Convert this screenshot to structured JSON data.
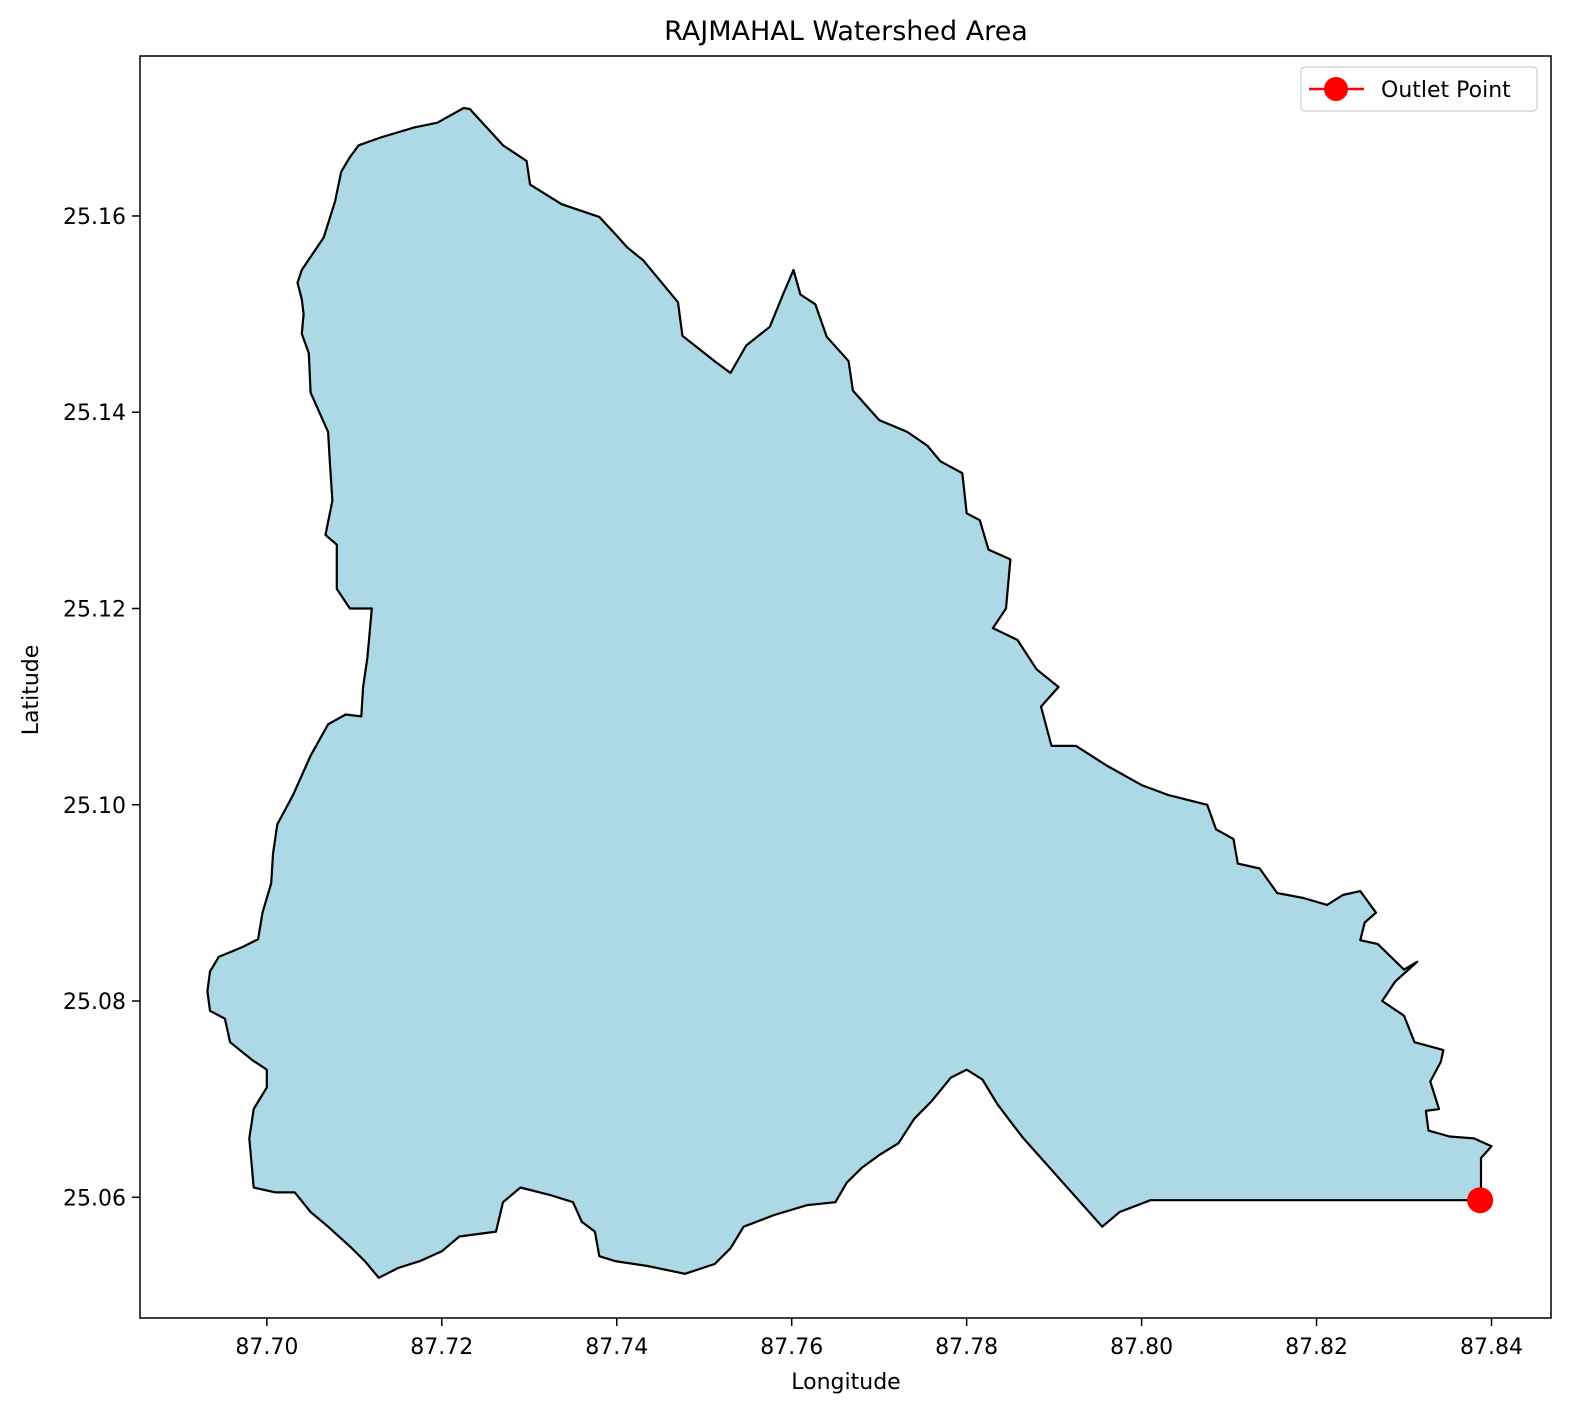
{
  "chart_data": {
    "type": "map",
    "title": "RAJMAHAL Watershed Area",
    "xlabel": "Longitude",
    "ylabel": "Latitude",
    "xlim": [
      87.6855,
      87.8468
    ],
    "ylim": [
      25.0477,
      25.1763
    ],
    "x_ticks": [
      87.7,
      87.72,
      87.74,
      87.76,
      87.78,
      87.8,
      87.82,
      87.84
    ],
    "x_tick_labels": [
      "87.70",
      "87.72",
      "87.74",
      "87.76",
      "87.78",
      "87.80",
      "87.82",
      "87.84"
    ],
    "y_ticks": [
      25.06,
      25.08,
      25.1,
      25.12,
      25.14,
      25.16
    ],
    "y_tick_labels": [
      "25.06",
      "25.08",
      "25.10",
      "25.12",
      "25.14",
      "25.16"
    ],
    "grid": false,
    "legend": {
      "position": "top-right",
      "entries": [
        "Outlet Point"
      ]
    },
    "colors": {
      "watershed_fill": "#add8e6",
      "watershed_edge": "#000000",
      "outlet": "#ff0000"
    },
    "outlet_point": {
      "name": "Outlet Point",
      "lon": 87.8387,
      "lat": 25.0597
    },
    "watershed_boundary": [
      [
        87.7232,
        25.1709
      ],
      [
        87.727,
        25.1672
      ],
      [
        87.7297,
        25.1656
      ],
      [
        87.7301,
        25.1632
      ],
      [
        87.7337,
        25.1612
      ],
      [
        87.738,
        25.1599
      ],
      [
        87.74,
        25.158
      ],
      [
        87.7412,
        25.1568
      ],
      [
        87.743,
        25.1555
      ],
      [
        87.747,
        25.1512
      ],
      [
        87.7475,
        25.1478
      ],
      [
        87.7512,
        25.1452
      ],
      [
        87.753,
        25.144
      ],
      [
        87.7548,
        25.1468
      ],
      [
        87.7575,
        25.1487
      ],
      [
        87.759,
        25.152
      ],
      [
        87.7602,
        25.1545
      ],
      [
        87.761,
        25.152
      ],
      [
        87.7627,
        25.151
      ],
      [
        87.764,
        25.1477
      ],
      [
        87.7665,
        25.1452
      ],
      [
        87.767,
        25.1422
      ],
      [
        87.77,
        25.1392
      ],
      [
        87.7732,
        25.138
      ],
      [
        87.7755,
        25.1366
      ],
      [
        87.777,
        25.135
      ],
      [
        87.7795,
        25.1338
      ],
      [
        87.78,
        25.1297
      ],
      [
        87.7815,
        25.129
      ],
      [
        87.7825,
        25.126
      ],
      [
        87.785,
        25.125
      ],
      [
        87.7845,
        25.12
      ],
      [
        87.783,
        25.118
      ],
      [
        87.7858,
        25.1168
      ],
      [
        87.788,
        25.1138
      ],
      [
        87.7905,
        25.112
      ],
      [
        87.7885,
        25.11
      ],
      [
        87.7897,
        25.106
      ],
      [
        87.7925,
        25.106
      ],
      [
        87.796,
        25.104
      ],
      [
        87.8,
        25.102
      ],
      [
        87.803,
        25.101
      ],
      [
        87.8075,
        25.1
      ],
      [
        87.8085,
        25.0975
      ],
      [
        87.8105,
        25.0965
      ],
      [
        87.811,
        25.094
      ],
      [
        87.8135,
        25.0935
      ],
      [
        87.8155,
        25.091
      ],
      [
        87.8185,
        25.0905
      ],
      [
        87.8212,
        25.0898
      ],
      [
        87.823,
        25.0908
      ],
      [
        87.825,
        25.0912
      ],
      [
        87.8268,
        25.089
      ],
      [
        87.8255,
        25.088
      ],
      [
        87.825,
        25.0862
      ],
      [
        87.827,
        25.0858
      ],
      [
        87.83,
        25.0832
      ],
      [
        87.8315,
        25.084
      ],
      [
        87.829,
        25.082
      ],
      [
        87.8275,
        25.08
      ],
      [
        87.83,
        25.0785
      ],
      [
        87.8312,
        25.0758
      ],
      [
        87.8345,
        25.075
      ],
      [
        87.8342,
        25.0738
      ],
      [
        87.833,
        25.0718
      ],
      [
        87.834,
        25.069
      ],
      [
        87.8325,
        25.0688
      ],
      [
        87.8328,
        25.0668
      ],
      [
        87.8352,
        25.0662
      ],
      [
        87.838,
        25.066
      ],
      [
        87.84,
        25.0652
      ],
      [
        87.8388,
        25.064
      ],
      [
        87.8388,
        25.0597
      ],
      [
        87.801,
        25.0597
      ],
      [
        87.7975,
        25.0585
      ],
      [
        87.7955,
        25.057
      ],
      [
        87.7925,
        25.06
      ],
      [
        87.7885,
        25.064
      ],
      [
        87.7865,
        25.066
      ],
      [
        87.7852,
        25.0675
      ],
      [
        87.7835,
        25.0695
      ],
      [
        87.7818,
        25.072
      ],
      [
        87.78,
        25.073
      ],
      [
        87.7782,
        25.0722
      ],
      [
        87.776,
        25.0698
      ],
      [
        87.774,
        25.068
      ],
      [
        87.7722,
        25.0655
      ],
      [
        87.77,
        25.0643
      ],
      [
        87.768,
        25.063
      ],
      [
        87.7663,
        25.0615
      ],
      [
        87.765,
        25.0595
      ],
      [
        87.7618,
        25.0592
      ],
      [
        87.758,
        25.0582
      ],
      [
        87.7545,
        25.057
      ],
      [
        87.753,
        25.0548
      ],
      [
        87.7512,
        25.0532
      ],
      [
        87.7478,
        25.0522
      ],
      [
        87.7435,
        25.053
      ],
      [
        87.7398,
        25.0535
      ],
      [
        87.738,
        25.054
      ],
      [
        87.7375,
        25.0565
      ],
      [
        87.736,
        25.0575
      ],
      [
        87.735,
        25.0595
      ],
      [
        87.7325,
        25.0602
      ],
      [
        87.729,
        25.061
      ],
      [
        87.727,
        25.0595
      ],
      [
        87.7262,
        25.0565
      ],
      [
        87.722,
        25.056
      ],
      [
        87.72,
        25.0545
      ],
      [
        87.7175,
        25.0535
      ],
      [
        87.715,
        25.0528
      ],
      [
        87.7128,
        25.0518
      ],
      [
        87.7112,
        25.0535
      ],
      [
        87.7095,
        25.055
      ],
      [
        87.707,
        25.057
      ],
      [
        87.705,
        25.0585
      ],
      [
        87.7032,
        25.0605
      ],
      [
        87.701,
        25.0605
      ],
      [
        87.6985,
        25.061
      ],
      [
        87.698,
        25.066
      ],
      [
        87.6985,
        25.069
      ],
      [
        87.7,
        25.0712
      ],
      [
        87.7,
        25.073
      ],
      [
        87.6983,
        25.074
      ],
      [
        87.6958,
        25.0758
      ],
      [
        87.6952,
        25.0782
      ],
      [
        87.6935,
        25.079
      ],
      [
        87.6932,
        25.081
      ],
      [
        87.6935,
        25.083
      ],
      [
        87.6945,
        25.0845
      ],
      [
        87.6972,
        25.0855
      ],
      [
        87.699,
        25.0863
      ],
      [
        87.6995,
        25.089
      ],
      [
        87.7005,
        25.092
      ],
      [
        87.7007,
        25.095
      ],
      [
        87.7012,
        25.098
      ],
      [
        87.703,
        25.101
      ],
      [
        87.705,
        25.105
      ],
      [
        87.707,
        25.1082
      ],
      [
        87.709,
        25.1092
      ],
      [
        87.7108,
        25.109
      ],
      [
        87.711,
        25.112
      ],
      [
        87.7115,
        25.115
      ],
      [
        87.712,
        25.12
      ],
      [
        87.7095,
        25.12
      ],
      [
        87.708,
        25.122
      ],
      [
        87.708,
        25.1265
      ],
      [
        87.7067,
        25.1275
      ],
      [
        87.7075,
        25.131
      ],
      [
        87.7072,
        25.135
      ],
      [
        87.707,
        25.138
      ],
      [
        87.706,
        25.14
      ],
      [
        87.705,
        25.142
      ],
      [
        87.7048,
        25.146
      ],
      [
        87.704,
        25.148
      ],
      [
        87.7042,
        25.15
      ],
      [
        87.704,
        25.1515
      ],
      [
        87.7035,
        25.1532
      ],
      [
        87.704,
        25.1545
      ],
      [
        87.7065,
        25.1578
      ],
      [
        87.7078,
        25.1615
      ],
      [
        87.7085,
        25.1645
      ],
      [
        87.7095,
        25.166
      ],
      [
        87.7105,
        25.1672
      ],
      [
        87.713,
        25.168
      ],
      [
        87.7168,
        25.169
      ],
      [
        87.7195,
        25.1695
      ],
      [
        87.7225,
        25.171
      ]
    ]
  }
}
